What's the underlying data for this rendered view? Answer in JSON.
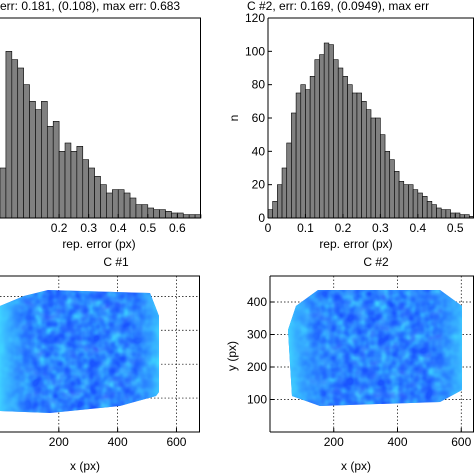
{
  "chart_data": [
    {
      "type": "bar",
      "title": "err: 0.181, (0.108), max err: 0.683",
      "xlabel": "rep. error (px)",
      "ylabel": "",
      "xlim": [
        0.0,
        0.68
      ],
      "ylim": [
        0,
        120
      ],
      "bin_start": 0.0,
      "bin_width": 0.02,
      "values": [
        30,
        100,
        95,
        90,
        80,
        70,
        65,
        70,
        55,
        58,
        40,
        45,
        40,
        43,
        35,
        30,
        25,
        20,
        15,
        17,
        17,
        15,
        12,
        8,
        8,
        6,
        5,
        5,
        4,
        3,
        3,
        2,
        2,
        2,
        1
      ],
      "xticks": [
        "0.2",
        "0.3",
        "0.4",
        "0.5",
        "0.6"
      ],
      "tick_values": [
        0.2,
        0.3,
        0.4,
        0.5,
        0.6
      ],
      "bar_color": "#808080"
    },
    {
      "type": "bar",
      "title": "C #2, err: 0.169, (0.0949), max err",
      "xlabel": "rep. error (px)",
      "ylabel": "n",
      "xlim": [
        0.0,
        0.55
      ],
      "ylim": [
        0,
        120
      ],
      "bin_start": 0.0,
      "bin_width": 0.0125,
      "values": [
        5,
        10,
        20,
        30,
        45,
        63,
        75,
        80,
        77,
        85,
        95,
        98,
        105,
        104,
        95,
        90,
        85,
        80,
        75,
        75,
        70,
        65,
        60,
        60,
        50,
        40,
        35,
        28,
        22,
        20,
        20,
        17,
        15,
        13,
        10,
        8,
        6,
        5,
        5,
        3,
        3,
        2,
        2,
        1,
        1
      ],
      "xticks": [
        "0",
        "0.1",
        "0.2",
        "0.3",
        "0.4",
        "0.5"
      ],
      "tick_values": [
        0,
        0.1,
        0.2,
        0.3,
        0.4,
        0.5
      ],
      "yticks": [
        "0",
        "20",
        "40",
        "60",
        "80",
        "100",
        "120"
      ],
      "ytick_values": [
        0,
        20,
        40,
        60,
        80,
        100,
        120
      ],
      "bar_color": "#808080"
    },
    {
      "type": "heatmap",
      "title": "C #1",
      "xlabel": "x (px)",
      "ylabel": "",
      "xlim": [
        0,
        680
      ],
      "ylim": [
        0,
        460
      ],
      "xticks": [
        "200",
        "400",
        "600"
      ],
      "tick_values": [
        200,
        400,
        600
      ],
      "grid": true,
      "colormap": "jet (low values)"
    },
    {
      "type": "heatmap",
      "title": "C #2",
      "xlabel": "x (px)",
      "ylabel": "y (px)",
      "xlim": [
        0,
        640
      ],
      "ylim": [
        0,
        480
      ],
      "xticks": [
        "200",
        "400",
        "600"
      ],
      "tick_values": [
        200,
        400,
        600
      ],
      "yticks": [
        "100",
        "200",
        "300",
        "400"
      ],
      "ytick_values": [
        100,
        200,
        300,
        400
      ],
      "grid": true,
      "colormap": "jet (low values)"
    }
  ]
}
